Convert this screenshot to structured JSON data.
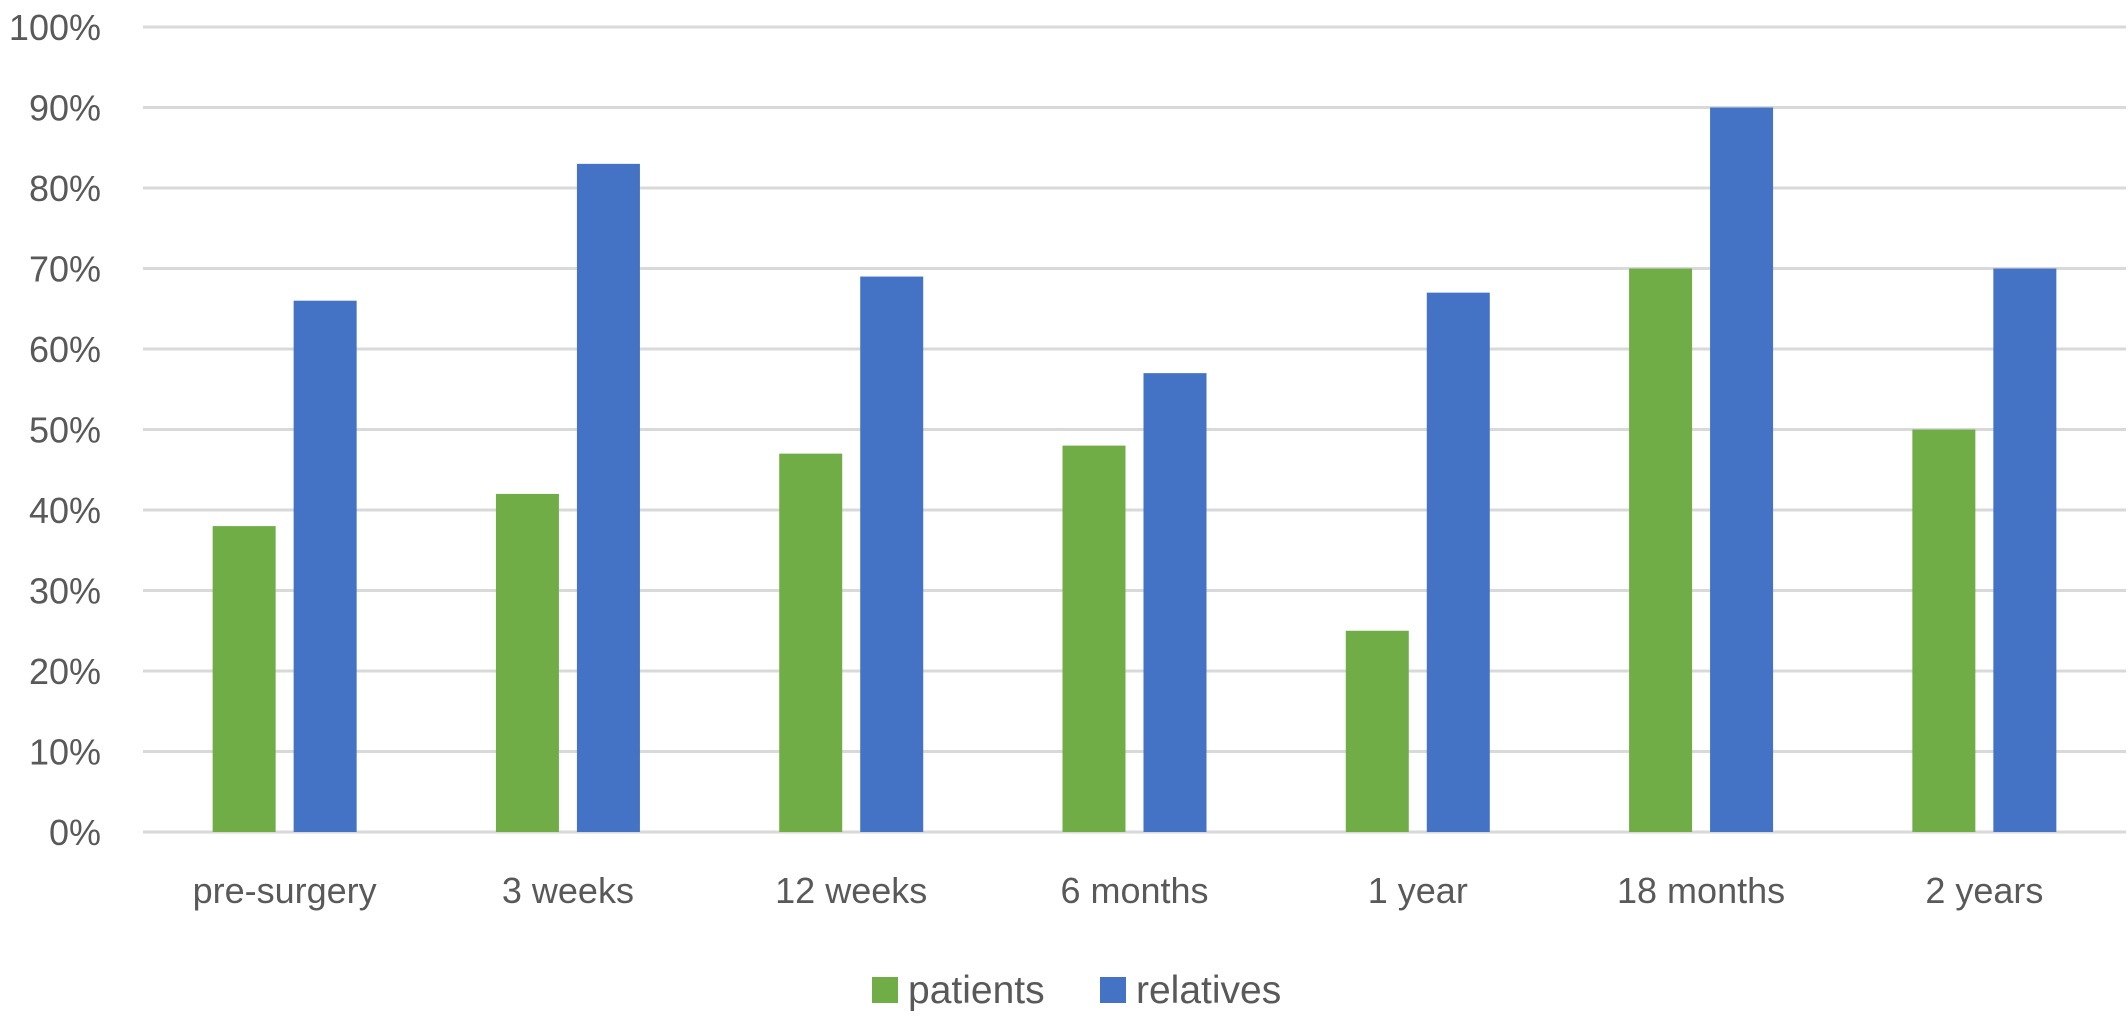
{
  "chart_data": {
    "type": "bar",
    "categories": [
      "pre-surgery",
      "3 weeks",
      "12 weeks",
      "6 months",
      "1 year",
      "18 months",
      "2 years"
    ],
    "series": [
      {
        "name": "patients",
        "color": "#70ad47",
        "values": [
          38,
          42,
          47,
          48,
          25,
          70,
          50
        ]
      },
      {
        "name": "relatives",
        "color": "#4472c4",
        "values": [
          66,
          83,
          69,
          57,
          67,
          90,
          70
        ]
      }
    ],
    "y_ticks": [
      "0%",
      "10%",
      "20%",
      "30%",
      "40%",
      "50%",
      "60%",
      "70%",
      "80%",
      "90%",
      "100%"
    ],
    "ylim": [
      0,
      100
    ],
    "y_unit": "%",
    "grid": true,
    "legend_position": "bottom-center",
    "gridline_color": "#d9d9d9",
    "text_color": "#595959"
  }
}
